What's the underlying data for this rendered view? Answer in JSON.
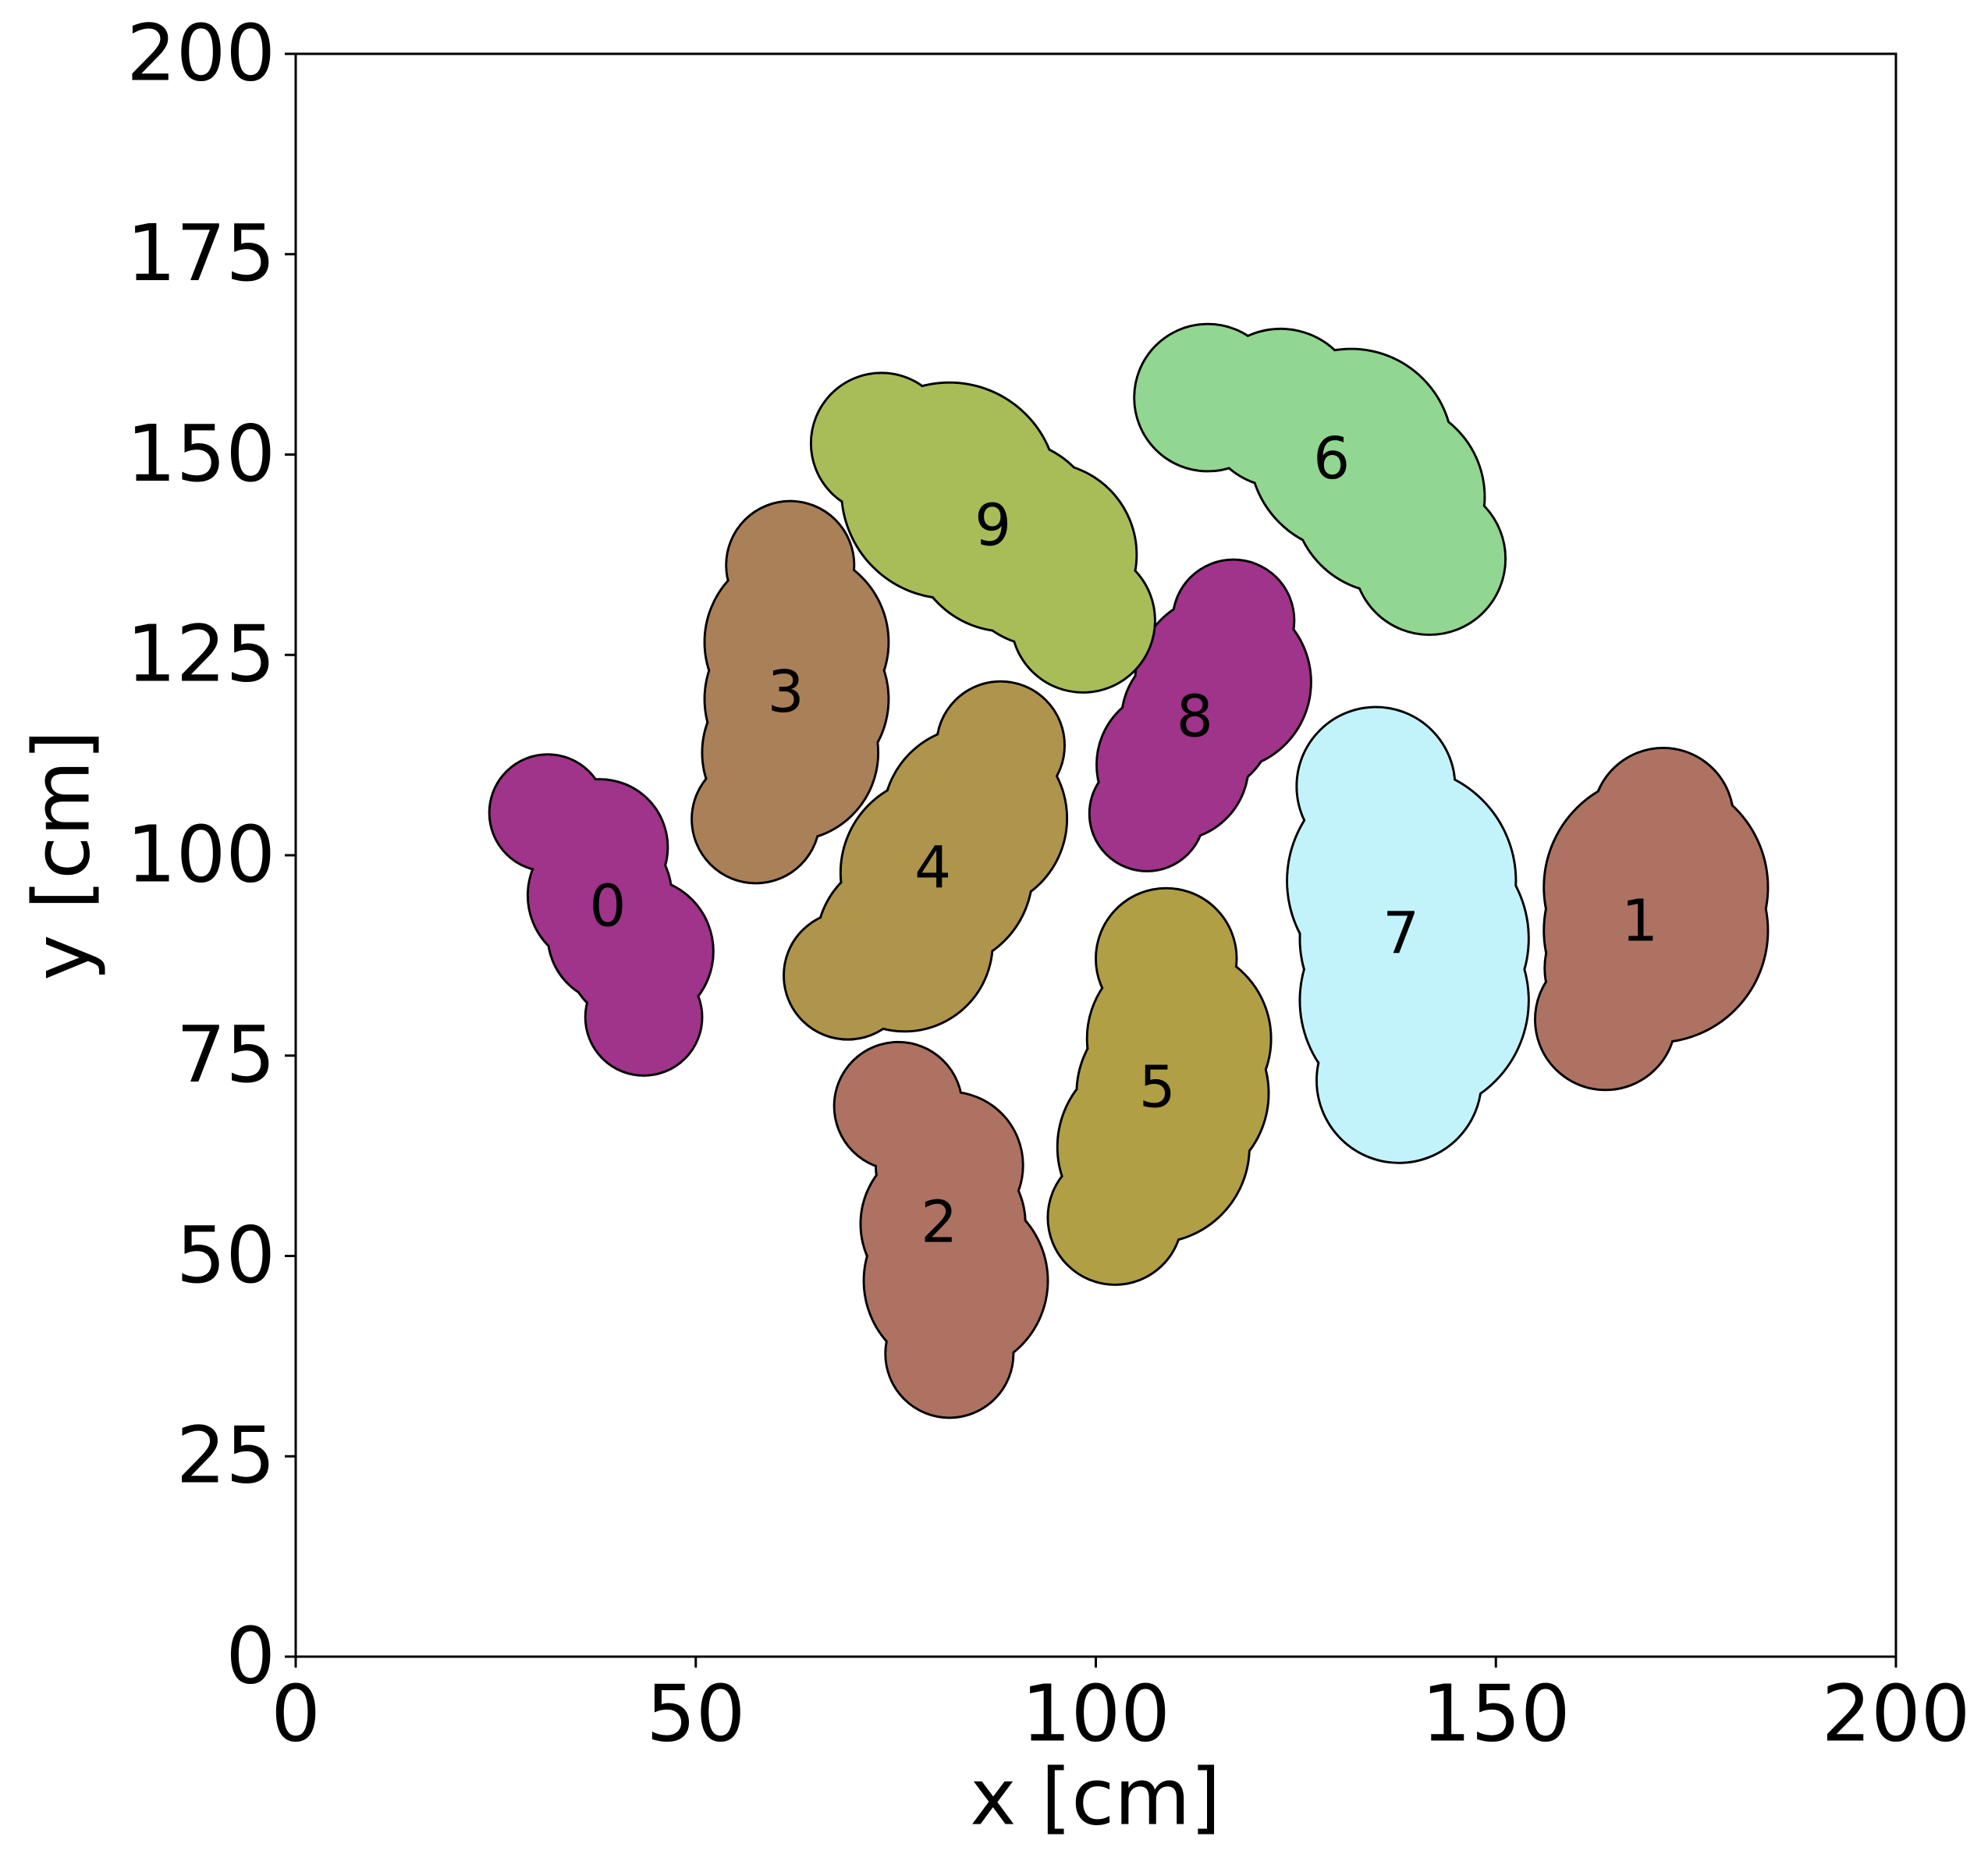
{
  "chart_data": {
    "type": "blobs",
    "xlabel": "x [cm]",
    "ylabel": "y [cm]",
    "xlim": [
      0,
      200
    ],
    "ylim": [
      0,
      200
    ],
    "xticks": [
      0,
      50,
      100,
      150,
      200
    ],
    "yticks": [
      0,
      25,
      50,
      75,
      100,
      125,
      150,
      175,
      200
    ],
    "series": [
      {
        "name": "0",
        "color": "#a0338a",
        "x": [
          31.5,
          38,
          38,
          43,
          43.5,
          40
        ],
        "y": [
          105.3,
          101,
          95,
          88,
          79.8,
          90
        ],
        "r": [
          7.3,
          8.5,
          9,
          9.2,
          7.3,
          8.5
        ]
      },
      {
        "name": "1",
        "color": "#ad7262",
        "x": [
          170.9,
          170,
          170,
          165.3,
          163.7
        ],
        "y": [
          104.6,
          96,
          90.6,
          85.9,
          79.5
        ],
        "r": [
          8.8,
          14,
          14,
          9.2,
          8.8
        ]
      },
      {
        "name": "2",
        "color": "#ad7262",
        "x": [
          75.3,
          81.7,
          80.9,
          82.5,
          81.7
        ],
        "y": [
          68.7,
          61.3,
          54,
          46.9,
          37.8
        ],
        "r": [
          8,
          9.2,
          10.3,
          11.5,
          8
        ]
      },
      {
        "name": "3",
        "color": "#aa8058",
        "x": [
          61.8,
          62.6,
          62.6,
          61.8,
          57.5
        ],
        "y": [
          136.2,
          126.6,
          119.5,
          112.8,
          104.5
        ],
        "r": [
          8,
          11.5,
          11.5,
          11,
          8
        ]
      },
      {
        "name": "4",
        "color": "#af944b",
        "x": [
          88.1,
          84.9,
          80.1,
          76.1,
          69
        ],
        "y": [
          113.7,
          104.6,
          97.8,
          89,
          85
        ],
        "r": [
          8,
          11.5,
          12,
          11,
          8
        ]
      },
      {
        "name": "5",
        "color": "#b09f45",
        "x": [
          108.8,
          110.4,
          109.6,
          107.2,
          102.4
        ],
        "y": [
          87.1,
          77.1,
          70.3,
          63.6,
          54.8
        ],
        "r": [
          8.8,
          11.5,
          12,
          12,
          8.4
        ]
      },
      {
        "name": "6",
        "color": "#91d691",
        "x": [
          114,
          123.1,
          131.9,
          136.6,
          141.7
        ],
        "y": [
          157.1,
          155.8,
          150.5,
          144.7,
          137
        ],
        "r": [
          9.2,
          9.9,
          12.7,
          12,
          9.5
        ]
      },
      {
        "name": "7",
        "color": "#c2f3fb",
        "x": [
          135,
          138.2,
          139.8,
          139.8,
          137.9
        ],
        "y": [
          108.6,
          96.8,
          89.6,
          81.9,
          71.9
        ],
        "r": [
          9.9,
          14.3,
          14.3,
          14.3,
          10.3
        ]
      },
      {
        "name": "8",
        "color": "#a0338a",
        "x": [
          117.2,
          115.9,
          112.7,
          109.6,
          106.4
        ],
        "y": [
          129.3,
          121.6,
          116.9,
          111.3,
          105.2
        ],
        "r": [
          7.6,
          11,
          9.5,
          9.5,
          7.2
        ]
      },
      {
        "name": "9",
        "color": "#a8bd58",
        "x": [
          73.2,
          81.7,
          88.8,
          93.6,
          98.4
        ],
        "y": [
          151.4,
          145.5,
          139.9,
          137.5,
          129.3
        ],
        "r": [
          8.8,
          13.5,
          12,
          11.5,
          9
        ]
      }
    ]
  }
}
